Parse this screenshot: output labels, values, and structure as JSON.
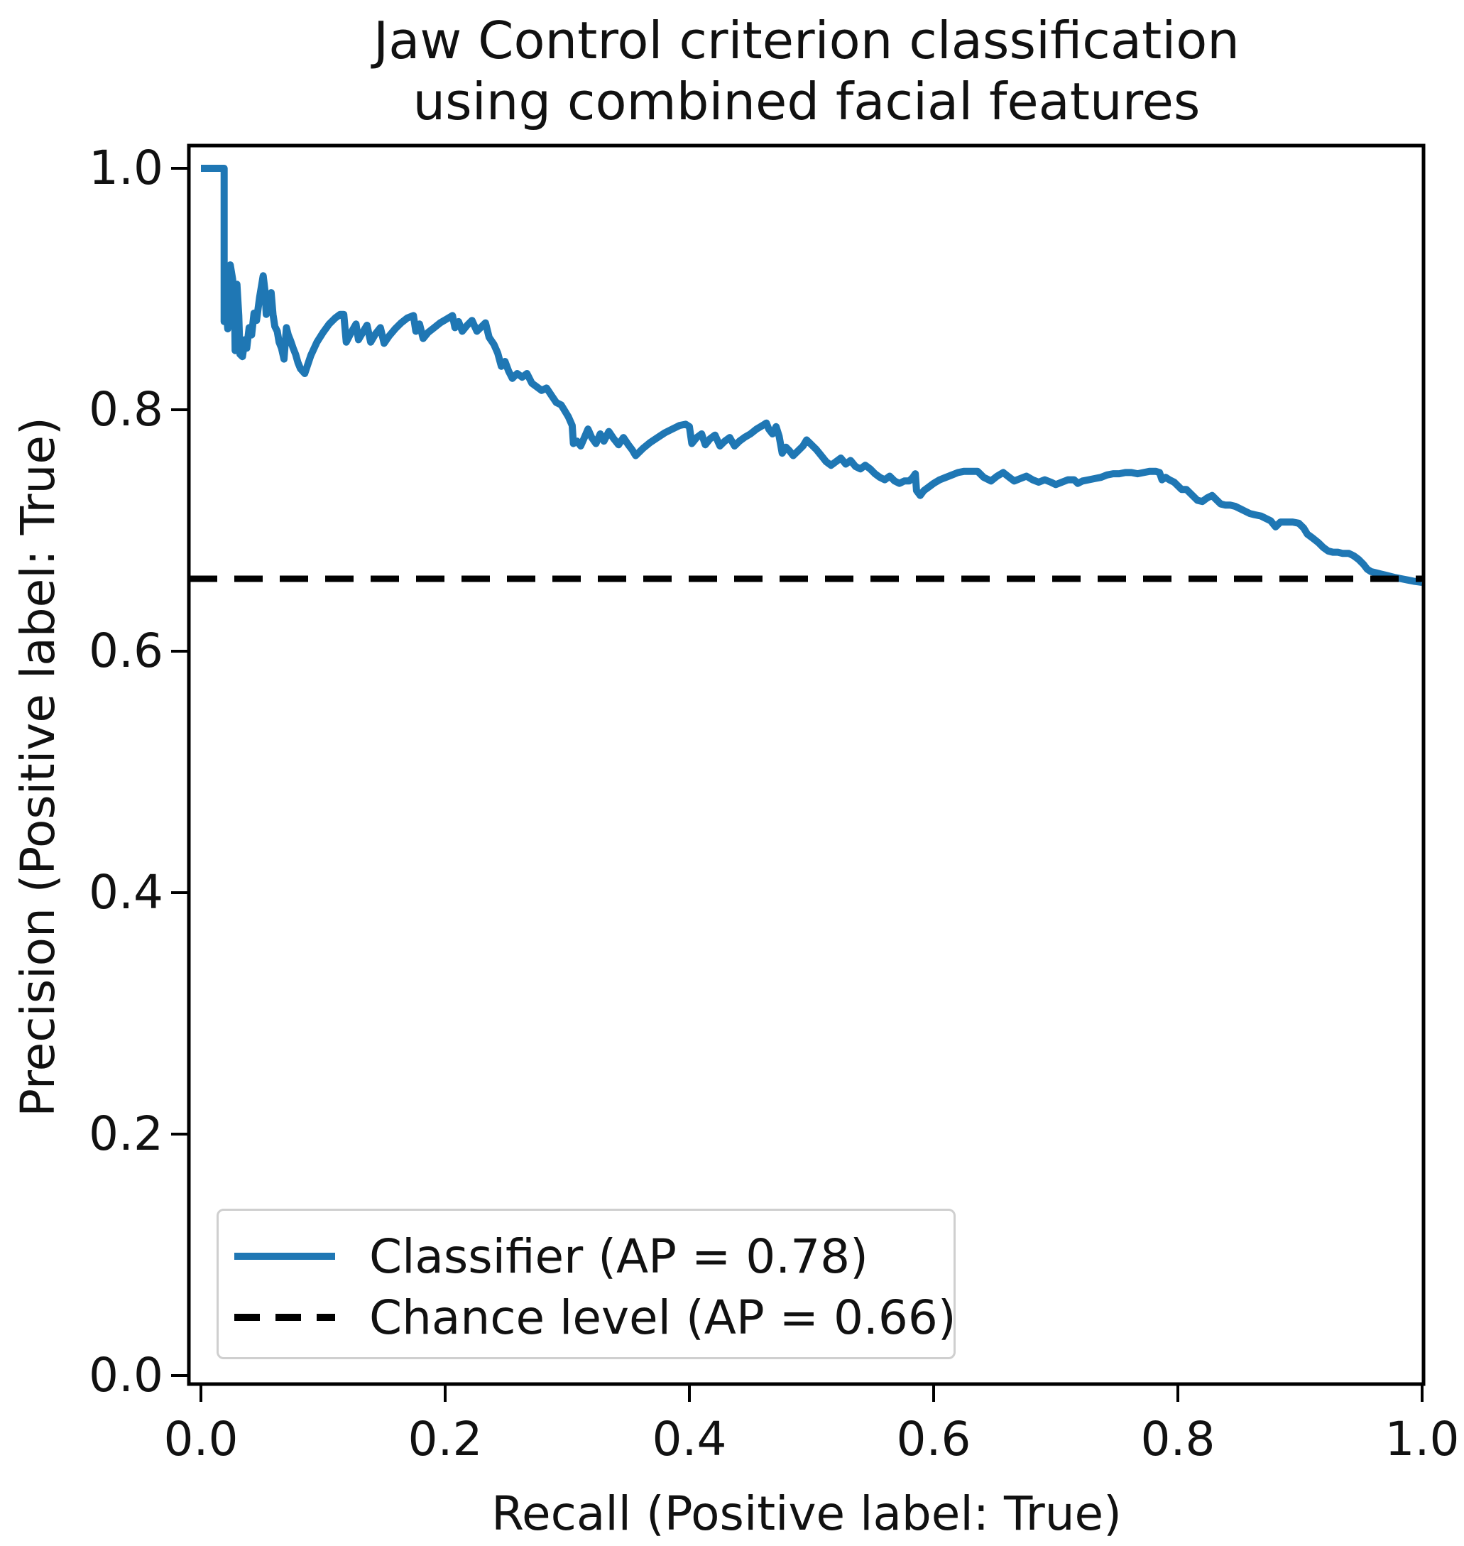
{
  "title": "Jaw Control criterion classification\nusing combined facial features",
  "axes": {
    "x": {
      "label": "Recall (Positive label: True)",
      "ticks": [
        {
          "label": "0.0",
          "value": 0.0
        },
        {
          "label": "0.2",
          "value": 0.2
        },
        {
          "label": "0.4",
          "value": 0.4
        },
        {
          "label": "0.6",
          "value": 0.6
        },
        {
          "label": "0.8",
          "value": 0.8
        },
        {
          "label": "1.0",
          "value": 1.0
        }
      ]
    },
    "y": {
      "label": "Precision (Positive label: True)",
      "ticks": [
        {
          "label": "1.0",
          "value": 1.0
        },
        {
          "label": "0.8",
          "value": 0.8
        },
        {
          "label": "0.6",
          "value": 0.6
        },
        {
          "label": "0.4",
          "value": 0.4
        },
        {
          "label": "0.2",
          "value": 0.2
        },
        {
          "label": "0.0",
          "value": 0.0
        }
      ]
    }
  },
  "legend": {
    "entries": [
      {
        "label": "Classifier (AP = 0.78)",
        "style": "solid",
        "color": "#1f77b4"
      },
      {
        "label": "Chance level (AP = 0.66)",
        "style": "dashed",
        "color": "#000000"
      }
    ]
  },
  "colors": {
    "classifier": "#1f77b4",
    "chance": "#000000",
    "spine": "#000000"
  },
  "chart_data": {
    "type": "line",
    "title": "Jaw Control criterion classification using combined facial features",
    "xlabel": "Recall (Positive label: True)",
    "ylabel": "Precision (Positive label: True)",
    "xlim": [
      0,
      1
    ],
    "ylim": [
      0,
      1
    ],
    "grid": false,
    "legend_position": "lower left",
    "chance_level": 0.66,
    "series": [
      {
        "name": "Classifier (AP = 0.78)",
        "ap": 0.78,
        "color": "#1f77b4",
        "linestyle": "solid",
        "points": [
          [
            0.0,
            1.0
          ],
          [
            0.019,
            1.0
          ],
          [
            0.019,
            0.873
          ],
          [
            0.0215,
            0.873
          ],
          [
            0.022,
            0.867
          ],
          [
            0.023,
            0.874
          ],
          [
            0.024,
            0.92
          ],
          [
            0.026,
            0.908
          ],
          [
            0.0265,
            0.893
          ],
          [
            0.0275,
            0.888
          ],
          [
            0.028,
            0.849
          ],
          [
            0.0295,
            0.904
          ],
          [
            0.031,
            0.878
          ],
          [
            0.032,
            0.846
          ],
          [
            0.034,
            0.844
          ],
          [
            0.036,
            0.858
          ],
          [
            0.0375,
            0.851
          ],
          [
            0.0395,
            0.868
          ],
          [
            0.0415,
            0.862
          ],
          [
            0.0435,
            0.88
          ],
          [
            0.0455,
            0.874
          ],
          [
            0.048,
            0.893
          ],
          [
            0.051,
            0.911
          ],
          [
            0.0525,
            0.898
          ],
          [
            0.0535,
            0.879
          ],
          [
            0.0555,
            0.889
          ],
          [
            0.0575,
            0.897
          ],
          [
            0.059,
            0.879
          ],
          [
            0.0605,
            0.869
          ],
          [
            0.0625,
            0.865
          ],
          [
            0.064,
            0.856
          ],
          [
            0.066,
            0.851
          ],
          [
            0.068,
            0.842
          ],
          [
            0.07,
            0.868
          ],
          [
            0.0715,
            0.862
          ],
          [
            0.0735,
            0.857
          ],
          [
            0.0755,
            0.851
          ],
          [
            0.0775,
            0.846
          ],
          [
            0.0795,
            0.839
          ],
          [
            0.0815,
            0.834
          ],
          [
            0.085,
            0.83
          ],
          [
            0.09,
            0.845
          ],
          [
            0.095,
            0.856
          ],
          [
            0.1,
            0.864
          ],
          [
            0.105,
            0.871
          ],
          [
            0.11,
            0.876
          ],
          [
            0.114,
            0.879
          ],
          [
            0.117,
            0.879
          ],
          [
            0.119,
            0.856
          ],
          [
            0.123,
            0.864
          ],
          [
            0.127,
            0.871
          ],
          [
            0.129,
            0.858
          ],
          [
            0.133,
            0.865
          ],
          [
            0.136,
            0.87
          ],
          [
            0.139,
            0.856
          ],
          [
            0.143,
            0.863
          ],
          [
            0.147,
            0.868
          ],
          [
            0.15,
            0.855
          ],
          [
            0.154,
            0.861
          ],
          [
            0.159,
            0.867
          ],
          [
            0.164,
            0.872
          ],
          [
            0.169,
            0.876
          ],
          [
            0.174,
            0.878
          ],
          [
            0.176,
            0.865
          ],
          [
            0.179,
            0.871
          ],
          [
            0.182,
            0.859
          ],
          [
            0.186,
            0.864
          ],
          [
            0.191,
            0.868
          ],
          [
            0.196,
            0.872
          ],
          [
            0.201,
            0.875
          ],
          [
            0.206,
            0.878
          ],
          [
            0.208,
            0.868
          ],
          [
            0.211,
            0.873
          ],
          [
            0.214,
            0.865
          ],
          [
            0.218,
            0.87
          ],
          [
            0.222,
            0.874
          ],
          [
            0.226,
            0.865
          ],
          [
            0.23,
            0.869
          ],
          [
            0.233,
            0.872
          ],
          [
            0.236,
            0.86
          ],
          [
            0.24,
            0.854
          ],
          [
            0.243,
            0.847
          ],
          [
            0.246,
            0.836
          ],
          [
            0.249,
            0.84
          ],
          [
            0.252,
            0.832
          ],
          [
            0.255,
            0.826
          ],
          [
            0.259,
            0.83
          ],
          [
            0.263,
            0.827
          ],
          [
            0.267,
            0.83
          ],
          [
            0.271,
            0.822
          ],
          [
            0.275,
            0.819
          ],
          [
            0.279,
            0.816
          ],
          [
            0.283,
            0.818
          ],
          [
            0.287,
            0.812
          ],
          [
            0.291,
            0.806
          ],
          [
            0.295,
            0.804
          ],
          [
            0.298,
            0.799
          ],
          [
            0.301,
            0.794
          ],
          [
            0.304,
            0.787
          ],
          [
            0.305,
            0.772
          ],
          [
            0.308,
            0.774
          ],
          [
            0.311,
            0.77
          ],
          [
            0.314,
            0.777
          ],
          [
            0.317,
            0.784
          ],
          [
            0.32,
            0.777
          ],
          [
            0.3235,
            0.772
          ],
          [
            0.327,
            0.78
          ],
          [
            0.33,
            0.774
          ],
          [
            0.334,
            0.782
          ],
          [
            0.338,
            0.776
          ],
          [
            0.342,
            0.771
          ],
          [
            0.346,
            0.777
          ],
          [
            0.35,
            0.771
          ],
          [
            0.353,
            0.767
          ],
          [
            0.356,
            0.762
          ],
          [
            0.362,
            0.768
          ],
          [
            0.368,
            0.773
          ],
          [
            0.374,
            0.777
          ],
          [
            0.38,
            0.781
          ],
          [
            0.386,
            0.784
          ],
          [
            0.392,
            0.787
          ],
          [
            0.397,
            0.788
          ],
          [
            0.4,
            0.786
          ],
          [
            0.402,
            0.772
          ],
          [
            0.406,
            0.777
          ],
          [
            0.41,
            0.78
          ],
          [
            0.413,
            0.771
          ],
          [
            0.417,
            0.776
          ],
          [
            0.421,
            0.779
          ],
          [
            0.425,
            0.77
          ],
          [
            0.429,
            0.774
          ],
          [
            0.433,
            0.777
          ],
          [
            0.437,
            0.77
          ],
          [
            0.441,
            0.774
          ],
          [
            0.445,
            0.777
          ],
          [
            0.45,
            0.78
          ],
          [
            0.455,
            0.784
          ],
          [
            0.46,
            0.787
          ],
          [
            0.463,
            0.789
          ],
          [
            0.465,
            0.784
          ],
          [
            0.468,
            0.78
          ],
          [
            0.471,
            0.786
          ],
          [
            0.4735,
            0.778
          ],
          [
            0.476,
            0.764
          ],
          [
            0.479,
            0.769
          ],
          [
            0.482,
            0.766
          ],
          [
            0.485,
            0.762
          ],
          [
            0.489,
            0.766
          ],
          [
            0.493,
            0.77
          ],
          [
            0.496,
            0.775
          ],
          [
            0.5,
            0.771
          ],
          [
            0.504,
            0.767
          ],
          [
            0.508,
            0.762
          ],
          [
            0.512,
            0.757
          ],
          [
            0.516,
            0.754
          ],
          [
            0.52,
            0.757
          ],
          [
            0.524,
            0.76
          ],
          [
            0.528,
            0.755
          ],
          [
            0.532,
            0.758
          ],
          [
            0.536,
            0.753
          ],
          [
            0.54,
            0.751
          ],
          [
            0.544,
            0.754
          ],
          [
            0.548,
            0.751
          ],
          [
            0.552,
            0.747
          ],
          [
            0.556,
            0.744
          ],
          [
            0.56,
            0.742
          ],
          [
            0.564,
            0.745
          ],
          [
            0.568,
            0.741
          ],
          [
            0.572,
            0.739
          ],
          [
            0.576,
            0.741
          ],
          [
            0.58,
            0.741
          ],
          [
            0.583,
            0.744
          ],
          [
            0.585,
            0.747
          ],
          [
            0.586,
            0.733
          ],
          [
            0.589,
            0.729
          ],
          [
            0.592,
            0.733
          ],
          [
            0.596,
            0.736
          ],
          [
            0.6,
            0.739
          ],
          [
            0.605,
            0.742
          ],
          [
            0.61,
            0.744
          ],
          [
            0.615,
            0.746
          ],
          [
            0.62,
            0.748
          ],
          [
            0.625,
            0.749
          ],
          [
            0.631,
            0.749
          ],
          [
            0.636,
            0.749
          ],
          [
            0.641,
            0.744
          ],
          [
            0.647,
            0.741
          ],
          [
            0.652,
            0.745
          ],
          [
            0.657,
            0.748
          ],
          [
            0.662,
            0.744
          ],
          [
            0.666,
            0.741
          ],
          [
            0.671,
            0.743
          ],
          [
            0.676,
            0.745
          ],
          [
            0.681,
            0.742
          ],
          [
            0.686,
            0.74
          ],
          [
            0.691,
            0.742
          ],
          [
            0.696,
            0.74
          ],
          [
            0.7,
            0.738
          ],
          [
            0.705,
            0.74
          ],
          [
            0.71,
            0.742
          ],
          [
            0.715,
            0.742
          ],
          [
            0.718,
            0.739
          ],
          [
            0.722,
            0.741
          ],
          [
            0.727,
            0.742
          ],
          [
            0.732,
            0.743
          ],
          [
            0.737,
            0.744
          ],
          [
            0.742,
            0.746
          ],
          [
            0.747,
            0.747
          ],
          [
            0.752,
            0.747
          ],
          [
            0.757,
            0.748
          ],
          [
            0.762,
            0.748
          ],
          [
            0.767,
            0.747
          ],
          [
            0.772,
            0.748
          ],
          [
            0.777,
            0.749
          ],
          [
            0.782,
            0.749
          ],
          [
            0.785,
            0.748
          ],
          [
            0.787,
            0.742
          ],
          [
            0.79,
            0.744
          ],
          [
            0.793,
            0.742
          ],
          [
            0.797,
            0.74
          ],
          [
            0.8,
            0.737
          ],
          [
            0.803,
            0.734
          ],
          [
            0.807,
            0.734
          ],
          [
            0.81,
            0.731
          ],
          [
            0.813,
            0.728
          ],
          [
            0.816,
            0.725
          ],
          [
            0.82,
            0.724
          ],
          [
            0.824,
            0.727
          ],
          [
            0.828,
            0.729
          ],
          [
            0.831,
            0.726
          ],
          [
            0.835,
            0.722
          ],
          [
            0.839,
            0.721
          ],
          [
            0.843,
            0.721
          ],
          [
            0.847,
            0.72
          ],
          [
            0.851,
            0.718
          ],
          [
            0.855,
            0.716
          ],
          [
            0.859,
            0.714
          ],
          [
            0.863,
            0.713
          ],
          [
            0.868,
            0.712
          ],
          [
            0.872,
            0.71
          ],
          [
            0.876,
            0.708
          ],
          [
            0.88,
            0.703
          ],
          [
            0.884,
            0.707
          ],
          [
            0.889,
            0.707
          ],
          [
            0.894,
            0.707
          ],
          [
            0.899,
            0.706
          ],
          [
            0.903,
            0.702
          ],
          [
            0.906,
            0.697
          ],
          [
            0.91,
            0.694
          ],
          [
            0.915,
            0.69
          ],
          [
            0.919,
            0.686
          ],
          [
            0.923,
            0.683
          ],
          [
            0.927,
            0.682
          ],
          [
            0.931,
            0.682
          ],
          [
            0.935,
            0.681
          ],
          [
            0.94,
            0.681
          ],
          [
            0.944,
            0.679
          ],
          [
            0.948,
            0.676
          ],
          [
            0.952,
            0.672
          ],
          [
            0.955,
            0.668
          ],
          [
            0.958,
            0.666
          ],
          [
            0.962,
            0.665
          ],
          [
            0.966,
            0.664
          ],
          [
            0.97,
            0.663
          ],
          [
            0.974,
            0.662
          ],
          [
            0.978,
            0.661
          ],
          [
            0.983,
            0.66
          ],
          [
            0.988,
            0.659
          ],
          [
            0.993,
            0.658
          ],
          [
            1.0,
            0.657
          ]
        ]
      },
      {
        "name": "Chance level (AP = 0.66)",
        "ap": 0.66,
        "color": "#000000",
        "linestyle": "dashed",
        "points": [
          [
            0.0,
            0.66
          ],
          [
            1.0,
            0.66
          ]
        ]
      }
    ]
  }
}
